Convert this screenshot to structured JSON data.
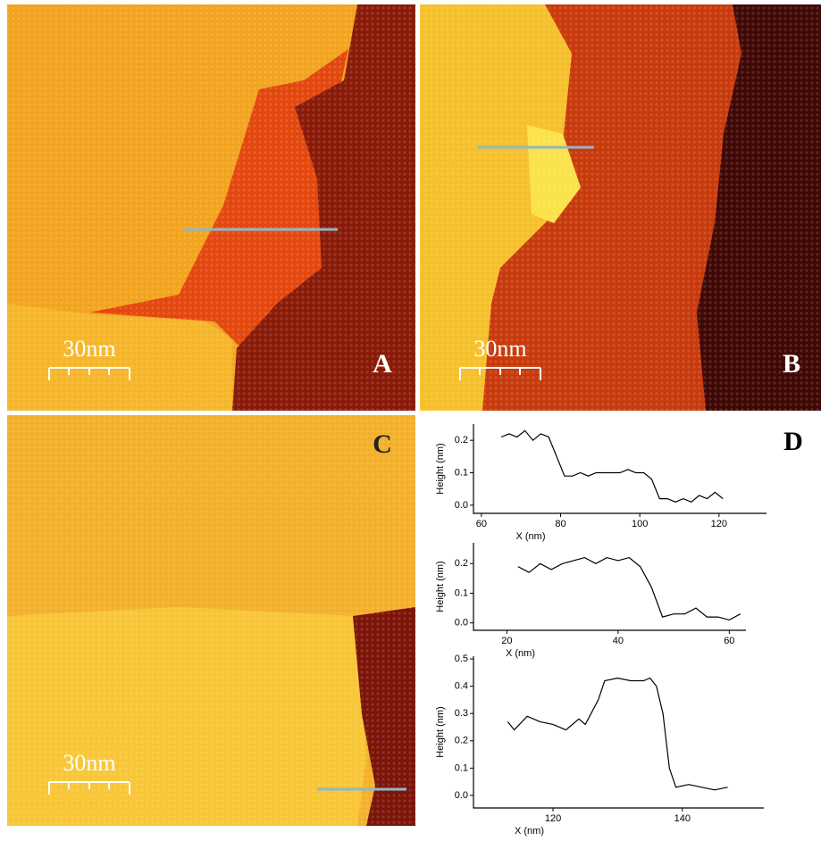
{
  "panels": [
    {
      "label": "A",
      "scale": "30nm"
    },
    {
      "label": "B",
      "scale": "30nm"
    },
    {
      "label": "C",
      "scale": "30nm"
    }
  ],
  "plot_panel_label": "D",
  "chart_data": [
    {
      "type": "line",
      "x_label": "X (nm)",
      "y_label": "Height (nm)",
      "x": [
        65,
        67,
        69,
        71,
        73,
        75,
        77,
        79,
        81,
        83,
        85,
        87,
        89,
        91,
        93,
        95,
        97,
        99,
        101,
        103,
        105,
        107,
        109,
        111,
        113,
        115,
        117,
        119,
        121
      ],
      "values": [
        0.21,
        0.22,
        0.21,
        0.23,
        0.2,
        0.22,
        0.21,
        0.15,
        0.09,
        0.09,
        0.1,
        0.09,
        0.1,
        0.1,
        0.1,
        0.1,
        0.11,
        0.1,
        0.1,
        0.08,
        0.02,
        0.02,
        0.01,
        0.02,
        0.01,
        0.03,
        0.02,
        0.04,
        0.02
      ],
      "color": "#000000",
      "xlim": [
        58,
        132
      ],
      "xticks": [
        60,
        80,
        100,
        120
      ],
      "ylim": [
        -0.025,
        0.25
      ],
      "yticks": [
        {
          "value": 0,
          "label": "0.0"
        },
        0.1,
        0.2
      ]
    },
    {
      "type": "line",
      "x_label": "X (nm)",
      "y_label": "Height (nm)",
      "x": [
        22,
        24,
        26,
        28,
        30,
        32,
        34,
        36,
        38,
        40,
        42,
        44,
        46,
        48,
        50,
        52,
        54,
        56,
        58,
        60,
        62
      ],
      "values": [
        0.19,
        0.17,
        0.2,
        0.18,
        0.2,
        0.21,
        0.22,
        0.2,
        0.22,
        0.21,
        0.22,
        0.19,
        0.12,
        0.02,
        0.03,
        0.03,
        0.05,
        0.02,
        0.02,
        0.01,
        0.03
      ],
      "color": "#000000",
      "xlim": [
        14,
        63
      ],
      "xticks": [
        20,
        40,
        60
      ],
      "ylim": [
        -0.025,
        0.27
      ],
      "yticks": [
        {
          "value": 0,
          "label": "0.0"
        },
        0.1,
        0.2
      ]
    },
    {
      "type": "line",
      "x_label": "X (nm)",
      "y_label": "Height (nm)",
      "x": [
        113,
        114,
        116,
        118,
        120,
        122,
        124,
        125,
        127,
        128,
        130,
        132,
        134,
        135,
        136,
        137,
        138,
        139,
        141,
        143,
        145,
        147
      ],
      "values": [
        0.27,
        0.24,
        0.29,
        0.27,
        0.26,
        0.24,
        0.28,
        0.26,
        0.35,
        0.42,
        0.43,
        0.42,
        0.42,
        0.43,
        0.4,
        0.3,
        0.1,
        0.03,
        0.04,
        0.03,
        0.02,
        0.03
      ],
      "color": "#000000",
      "xlim": [
        107.7,
        152.6
      ],
      "xticks": [
        120,
        140
      ],
      "ylim": [
        -0.046,
        0.51
      ],
      "yticks": [
        {
          "value": 0,
          "label": "0.0"
        },
        0.1,
        0.2,
        0.3,
        0.4,
        0.5
      ]
    }
  ]
}
